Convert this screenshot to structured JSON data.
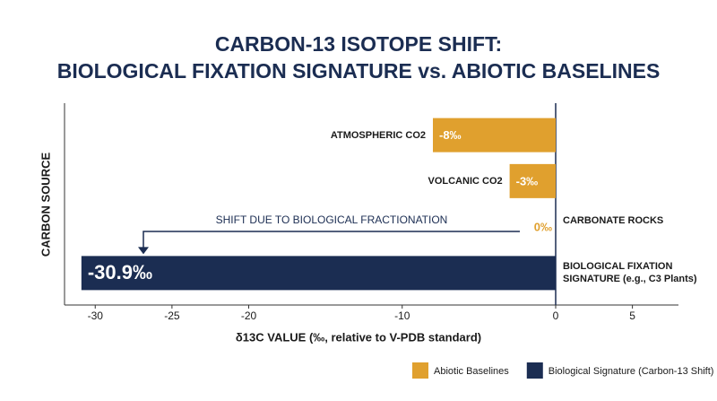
{
  "chart_data": {
    "type": "hbar",
    "title": [
      "CARBON-13 ISOTOPE SHIFT:",
      "BIOLOGICAL FIXATION SIGNATURE vs. ABIOTIC BASELINES"
    ],
    "x_label": "δ13C VALUE (‰, relative to V-PDB standard)",
    "y_label": "CARBON SOURCE",
    "annotation": "SHIFT DUE TO BIOLOGICAL FRACTIONATION",
    "categories": [
      "ATMOSPHERIC CO2",
      "VOLCANIC CO2",
      "CARBONATE ROCKS",
      "BIOLOGICAL FIXATION SIGNATURE (e.g., C3 Plants)"
    ],
    "series": [
      {
        "name": "Abiotic Baselines",
        "color": "#e0a02e",
        "values": [
          -8,
          -3,
          0,
          null
        ],
        "value_labels": [
          "-8‰",
          "-3‰",
          "0‰",
          null
        ]
      },
      {
        "name": "Biological Signature (Carbon-13 Shift)",
        "color": "#1b2d52",
        "values": [
          null,
          null,
          null,
          -30.9
        ],
        "value_labels": [
          null,
          null,
          null,
          "-30.9‰"
        ]
      }
    ],
    "xlim": [
      -32,
      8
    ],
    "xticks": [
      -30,
      -25,
      -20,
      -10,
      0,
      5
    ],
    "legend": "bottom-right"
  }
}
